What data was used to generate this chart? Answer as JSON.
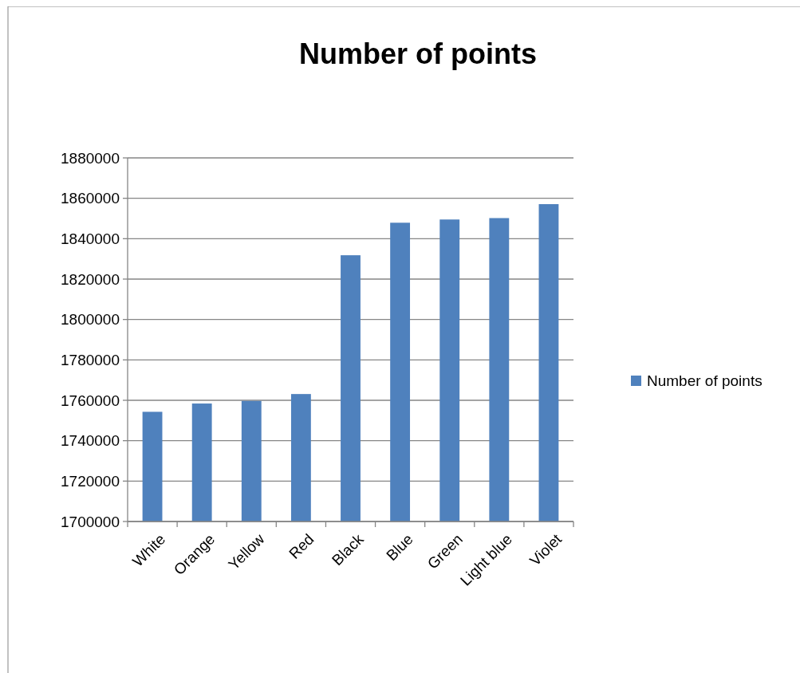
{
  "chart_data": {
    "type": "bar",
    "title": "Number of points",
    "categories": [
      "White",
      "Orange",
      "Yellow",
      "Red",
      "Black",
      "Blue",
      "Green",
      "Light blue",
      "Violet"
    ],
    "series": [
      {
        "name": "Number of points",
        "color": "#4f81bd",
        "values": [
          1754300,
          1758400,
          1759700,
          1763100,
          1831800,
          1847900,
          1849500,
          1850200,
          1857100
        ]
      }
    ],
    "ylim": [
      1700000,
      1880000
    ],
    "yticks": [
      1700000,
      1720000,
      1740000,
      1760000,
      1780000,
      1800000,
      1820000,
      1840000,
      1860000,
      1880000
    ],
    "grid": "y",
    "legend": "right"
  }
}
